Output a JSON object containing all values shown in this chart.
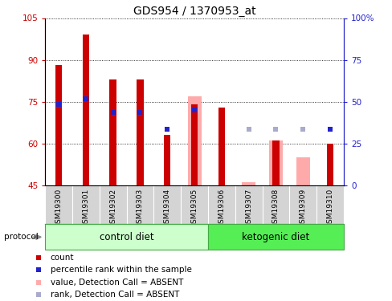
{
  "title": "GDS954 / 1370953_at",
  "samples": [
    "GSM19300",
    "GSM19301",
    "GSM19302",
    "GSM19303",
    "GSM19304",
    "GSM19305",
    "GSM19306",
    "GSM19307",
    "GSM19308",
    "GSM19309",
    "GSM19310"
  ],
  "ylim_left": [
    45,
    105
  ],
  "ylim_right": [
    0,
    100
  ],
  "yticks_left": [
    45,
    60,
    75,
    90,
    105
  ],
  "yticks_right": [
    0,
    25,
    50,
    75,
    100
  ],
  "ytick_labels_left": [
    "45",
    "60",
    "75",
    "90",
    "105"
  ],
  "ytick_labels_right": [
    "0",
    "25",
    "50",
    "75",
    "100%"
  ],
  "red_bar_values": [
    88,
    99,
    83,
    83,
    63,
    74,
    73,
    null,
    61,
    null,
    60
  ],
  "pink_bar_values": [
    null,
    null,
    null,
    null,
    null,
    77,
    null,
    46,
    61,
    55,
    null
  ],
  "blue_sq_values": [
    74,
    76,
    71,
    71,
    65,
    72,
    null,
    null,
    null,
    null,
    65
  ],
  "lav_sq_values": [
    null,
    null,
    null,
    null,
    null,
    null,
    null,
    65,
    65,
    65,
    null
  ],
  "red_color": "#cc0000",
  "pink_color": "#ffaaaa",
  "blue_color": "#2222cc",
  "lav_color": "#aaaacc",
  "bg_plot": "#ffffff",
  "bg_label": "#d4d4d4",
  "bg_control": "#ccffcc",
  "bg_ketogenic": "#55ee55",
  "left_axis_color": "#cc0000",
  "right_axis_color": "#2222cc",
  "n_control": 6,
  "n_keto": 5,
  "red_bar_width": 0.25,
  "pink_bar_width": 0.5,
  "sq_size": 4
}
